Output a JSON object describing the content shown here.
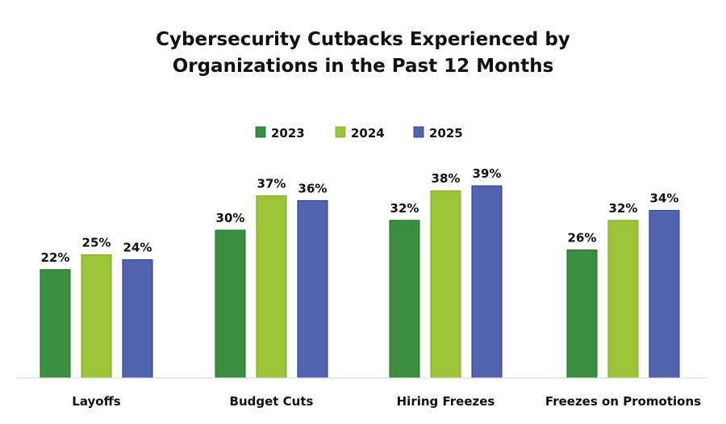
{
  "chart_data": {
    "type": "bar",
    "title_lines": [
      "Cybersecurity Cutbacks Experienced by",
      "Organizations in the Past 12 Months"
    ],
    "categories": [
      "Layoffs",
      "Budget Cuts",
      "Hiring Freezes",
      "Freezes on Promotions"
    ],
    "series": [
      {
        "name": "2023",
        "color": "#3a8f41",
        "border": "#1f6b26",
        "values": [
          22,
          30,
          32,
          26
        ]
      },
      {
        "name": "2024",
        "color": "#9bc437",
        "border": "#7fa82a",
        "values": [
          25,
          37,
          38,
          32
        ]
      },
      {
        "name": "2025",
        "color": "#5264b0",
        "border": "#22348a",
        "values": [
          24,
          36,
          39,
          34
        ]
      }
    ],
    "value_suffix": "%",
    "xlabel": "",
    "ylabel": "",
    "ylim": [
      0,
      40
    ],
    "grid": false,
    "legend_position": "top-center",
    "data_labels": true
  }
}
